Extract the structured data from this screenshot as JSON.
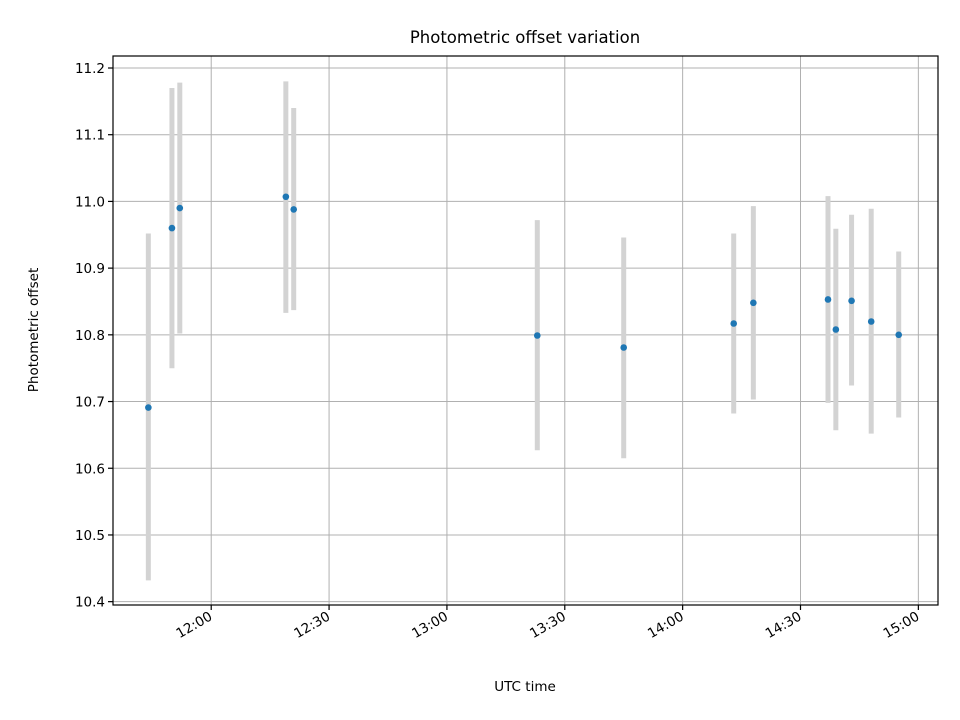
{
  "chart_data": {
    "type": "scatter",
    "title": "Photometric offset variation",
    "xlabel": "UTC time",
    "ylabel": "Photometric offset",
    "x_ticks": [
      "12:00",
      "12:30",
      "13:00",
      "13:30",
      "14:00",
      "14:30",
      "15:00"
    ],
    "y_ticks": [
      "10.4",
      "10.5",
      "10.6",
      "10.7",
      "10.8",
      "10.9",
      "11.0",
      "11.1",
      "11.2"
    ],
    "xlim": [
      "11:35",
      "15:05"
    ],
    "ylim": [
      10.395,
      11.218
    ],
    "grid": true,
    "point_color": "#1f77b4",
    "errorbar_color": "#d3d3d3",
    "points": [
      {
        "time": "11:44",
        "y": 10.691,
        "lo": 10.432,
        "hi": 10.952
      },
      {
        "time": "11:50",
        "y": 10.96,
        "lo": 10.75,
        "hi": 11.17
      },
      {
        "time": "11:52",
        "y": 10.99,
        "lo": 10.802,
        "hi": 11.178
      },
      {
        "time": "12:19",
        "y": 11.007,
        "lo": 10.833,
        "hi": 11.18
      },
      {
        "time": "12:21",
        "y": 10.988,
        "lo": 10.837,
        "hi": 11.14
      },
      {
        "time": "13:23",
        "y": 10.799,
        "lo": 10.627,
        "hi": 10.972
      },
      {
        "time": "13:45",
        "y": 10.781,
        "lo": 10.615,
        "hi": 10.946
      },
      {
        "time": "14:13",
        "y": 10.817,
        "lo": 10.682,
        "hi": 10.952
      },
      {
        "time": "14:18",
        "y": 10.848,
        "lo": 10.703,
        "hi": 10.993
      },
      {
        "time": "14:37",
        "y": 10.853,
        "lo": 10.698,
        "hi": 11.008
      },
      {
        "time": "14:39",
        "y": 10.808,
        "lo": 10.657,
        "hi": 10.959
      },
      {
        "time": "14:43",
        "y": 10.851,
        "lo": 10.724,
        "hi": 10.98
      },
      {
        "time": "14:48",
        "y": 10.82,
        "lo": 10.652,
        "hi": 10.989
      },
      {
        "time": "14:55",
        "y": 10.8,
        "lo": 10.676,
        "hi": 10.925
      }
    ]
  }
}
